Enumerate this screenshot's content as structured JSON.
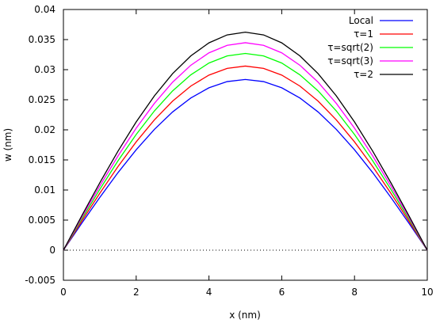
{
  "chart_data": {
    "type": "line",
    "xlabel": "x (nm)",
    "ylabel": "w (nm)",
    "xlim": [
      0,
      10
    ],
    "ylim": [
      -0.005,
      0.04
    ],
    "x_ticks": [
      0,
      2,
      4,
      6,
      8,
      10
    ],
    "y_ticks": [
      -0.005,
      0,
      0.005,
      0.01,
      0.015,
      0.02,
      0.025,
      0.03,
      0.035,
      0.04
    ],
    "x_tick_labels": [
      "0",
      "2",
      "4",
      "6",
      "8",
      "10"
    ],
    "y_tick_labels": [
      "-0.005",
      "0",
      "0.005",
      "0.01",
      "0.015",
      "0.02",
      "0.025",
      "0.03",
      "0.035",
      "0.04"
    ],
    "grid": false,
    "legend_position": "top-right",
    "zero_line": {
      "y": 0,
      "style": "dotted"
    },
    "x": [
      0,
      0.5,
      1,
      1.5,
      2,
      2.5,
      3,
      3.5,
      4,
      4.5,
      5,
      5.5,
      6,
      6.5,
      7,
      7.5,
      8,
      8.5,
      9,
      9.5,
      10
    ],
    "series": [
      {
        "name": "Local",
        "color": "#0000ff",
        "values": [
          0,
          0.00444,
          0.00877,
          0.01289,
          0.01669,
          0.02008,
          0.02297,
          0.02529,
          0.02699,
          0.02802,
          0.02837,
          0.02802,
          0.02699,
          0.02529,
          0.02297,
          0.02008,
          0.01669,
          0.01289,
          0.00877,
          0.00444,
          0
        ]
      },
      {
        "name": "τ=1",
        "color": "#ff0000",
        "values": [
          0,
          0.00479,
          0.00946,
          0.0139,
          0.018,
          0.02165,
          0.02477,
          0.02727,
          0.0291,
          0.03022,
          0.0306,
          0.03022,
          0.0291,
          0.02727,
          0.02477,
          0.02165,
          0.018,
          0.0139,
          0.00946,
          0.00479,
          0
        ]
      },
      {
        "name": "τ=sqrt(2)",
        "color": "#00ff00",
        "values": [
          0,
          0.00512,
          0.01011,
          0.01485,
          0.01923,
          0.02314,
          0.02647,
          0.02914,
          0.0311,
          0.03229,
          0.0327,
          0.03229,
          0.0311,
          0.02914,
          0.02647,
          0.02314,
          0.01923,
          0.01485,
          0.01011,
          0.00512,
          0
        ]
      },
      {
        "name": "τ=sqrt(3)",
        "color": "#ff00ff",
        "values": [
          0,
          0.0054,
          0.01066,
          0.01566,
          0.02028,
          0.0244,
          0.02791,
          0.03073,
          0.0328,
          0.03405,
          0.03448,
          0.03405,
          0.0328,
          0.03073,
          0.02791,
          0.0244,
          0.02028,
          0.01566,
          0.01066,
          0.0054,
          0
        ]
      },
      {
        "name": "τ=2",
        "color": "#000000",
        "values": [
          0,
          0.00567,
          0.0112,
          0.01646,
          0.02131,
          0.02564,
          0.02933,
          0.03229,
          0.03446,
          0.03578,
          0.03623,
          0.03578,
          0.03446,
          0.03229,
          0.02933,
          0.02564,
          0.02131,
          0.01646,
          0.0112,
          0.00567,
          0
        ]
      }
    ]
  }
}
